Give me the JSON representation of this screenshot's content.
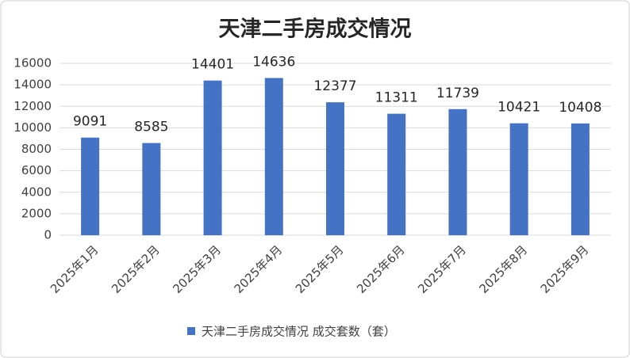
{
  "chart_data": {
    "type": "bar",
    "title": "天津二手房成交情况",
    "categories": [
      "2025年1月",
      "2025年2月",
      "2025年3月",
      "2025年4月",
      "2025年5月",
      "2025年6月",
      "2025年7月",
      "2025年8月",
      "2025年9月"
    ],
    "series": [
      {
        "name": "天津二手房成交情况 成交套数（套）",
        "color": "#4472c4",
        "values": [
          9091,
          8585,
          14401,
          14636,
          12377,
          11311,
          11739,
          10421,
          10408
        ]
      }
    ],
    "ylim": [
      0,
      16000
    ],
    "yticks": [
      0,
      2000,
      4000,
      6000,
      8000,
      10000,
      12000,
      14000,
      16000
    ],
    "grid": true,
    "data_labels": true,
    "legend": "bottom"
  }
}
